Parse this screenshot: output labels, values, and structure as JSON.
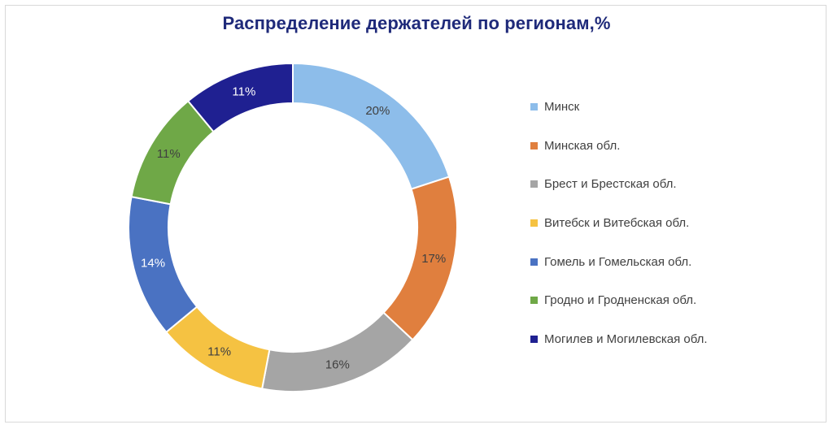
{
  "chart_data": {
    "type": "pie",
    "title": "Распределение держателей по регионам,%",
    "donut": true,
    "legend_position": "right",
    "slices": [
      {
        "label": "Минск",
        "value": 20,
        "value_label": "20%",
        "color": "#8dbdea"
      },
      {
        "label": "Минская обл.",
        "value": 17,
        "value_label": "17%",
        "color": "#e07f3e"
      },
      {
        "label": "Брест и Брестская обл.",
        "value": 16,
        "value_label": "16%",
        "color": "#a5a5a5"
      },
      {
        "label": "Витебск и Витебская обл.",
        "value": 11,
        "value_label": "11%",
        "color": "#f5c242"
      },
      {
        "label": "Гомель и Гомельская обл.",
        "value": 14,
        "value_label": "14%",
        "color": "#4a72c2"
      },
      {
        "label": "Гродно и Гродненская обл.",
        "value": 11,
        "value_label": "11%",
        "color": "#6fa847"
      },
      {
        "label": "Могилев и Могилевская обл.",
        "value": 11,
        "value_label": "11%",
        "color": "#1f2091"
      }
    ]
  },
  "colors": {
    "title": "#1f2a7a",
    "label_dark": "#404040",
    "label_light": "#ffffff"
  }
}
